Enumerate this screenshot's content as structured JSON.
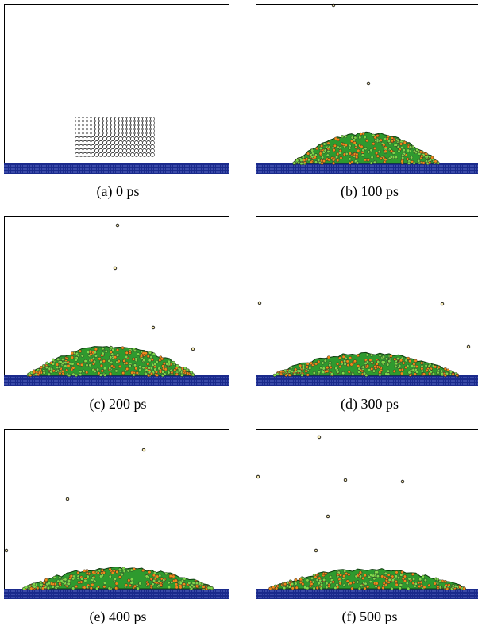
{
  "panels": [
    {
      "caption": "(a) 0 ps"
    },
    {
      "caption": "(b) 100 ps"
    },
    {
      "caption": "(c) 200 ps"
    },
    {
      "caption": "(d) 300 ps"
    },
    {
      "caption": "(e) 400 ps"
    },
    {
      "caption": "(f) 500 ps"
    }
  ]
}
